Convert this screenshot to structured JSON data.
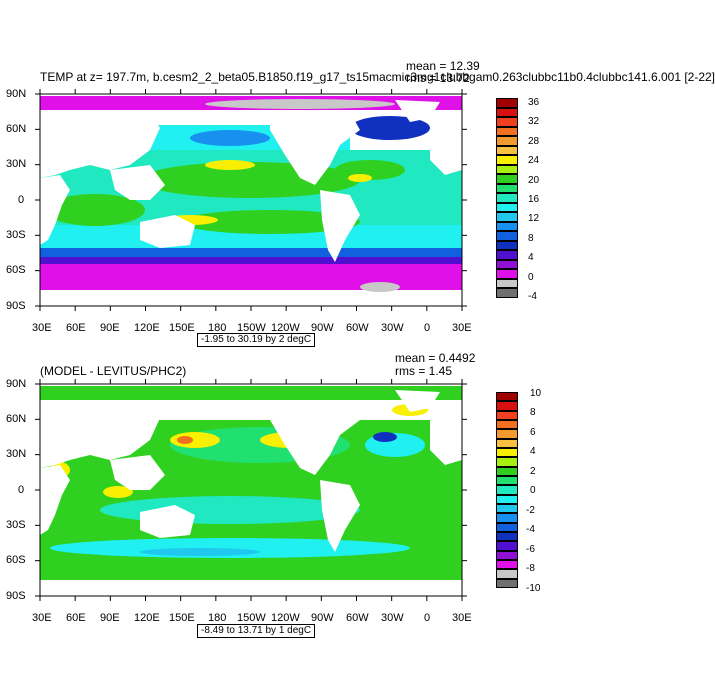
{
  "panels": [
    {
      "title": "TEMP at z= 197.7m, b.cesm2_2_beta05.B1850.f19_g17_ts15macmic3mg1clubbgam0.263clubbc11b0.4clubbc141.6.001 [2-22]",
      "mean": "mean = 12.39",
      "rms": "rms = 13.72",
      "caption": "-1.95 to 30.19 by 2 degC",
      "lat_labels": [
        "90N",
        "60N",
        "30N",
        "0",
        "30S",
        "60S",
        "90S"
      ],
      "lon_labels": [
        "30E",
        "60E",
        "90E",
        "120E",
        "150E",
        "180",
        "150W",
        "120W",
        "90W",
        "60W",
        "30W",
        "0",
        "30E"
      ],
      "colorbar_labels": [
        "36",
        "32",
        "28",
        "24",
        "20",
        "16",
        "12",
        "8",
        "4",
        "0",
        "-4"
      ],
      "colorbar_colors": [
        "#a00000",
        "#d81010",
        "#f04020",
        "#f07020",
        "#f09a30",
        "#f8c040",
        "#f8f000",
        "#a8f010",
        "#30d020",
        "#20e070",
        "#20e8c0",
        "#20f0f0",
        "#20c8f0",
        "#1890f0",
        "#1060e0",
        "#1030c0",
        "#5010d0",
        "#9010d8",
        "#e010e8",
        "#c8c8c8",
        "#707070"
      ]
    },
    {
      "title": "(MODEL - LEVITUS/PHC2)",
      "mean": "mean = 0.4492",
      "rms": "rms = 1.45",
      "caption": "-8.49 to 13.71 by 1 degC",
      "lat_labels": [
        "90N",
        "60N",
        "30N",
        "0",
        "30S",
        "60S",
        "90S"
      ],
      "lon_labels": [
        "30E",
        "60E",
        "90E",
        "120E",
        "150E",
        "180",
        "150W",
        "120W",
        "90W",
        "60W",
        "30W",
        "0",
        "30E"
      ],
      "colorbar_labels": [
        "10",
        "8",
        "6",
        "4",
        "2",
        "0",
        "-2",
        "-4",
        "-6",
        "-8",
        "-10"
      ],
      "colorbar_colors": [
        "#a00000",
        "#d81010",
        "#f04020",
        "#f07020",
        "#f09a30",
        "#f8c040",
        "#f8f000",
        "#a8f010",
        "#30d020",
        "#20e070",
        "#20e8c0",
        "#20f0f0",
        "#20c8f0",
        "#1890f0",
        "#1060e0",
        "#1030c0",
        "#5010d0",
        "#9010d8",
        "#e010e8",
        "#c8c8c8",
        "#707070"
      ]
    }
  ]
}
